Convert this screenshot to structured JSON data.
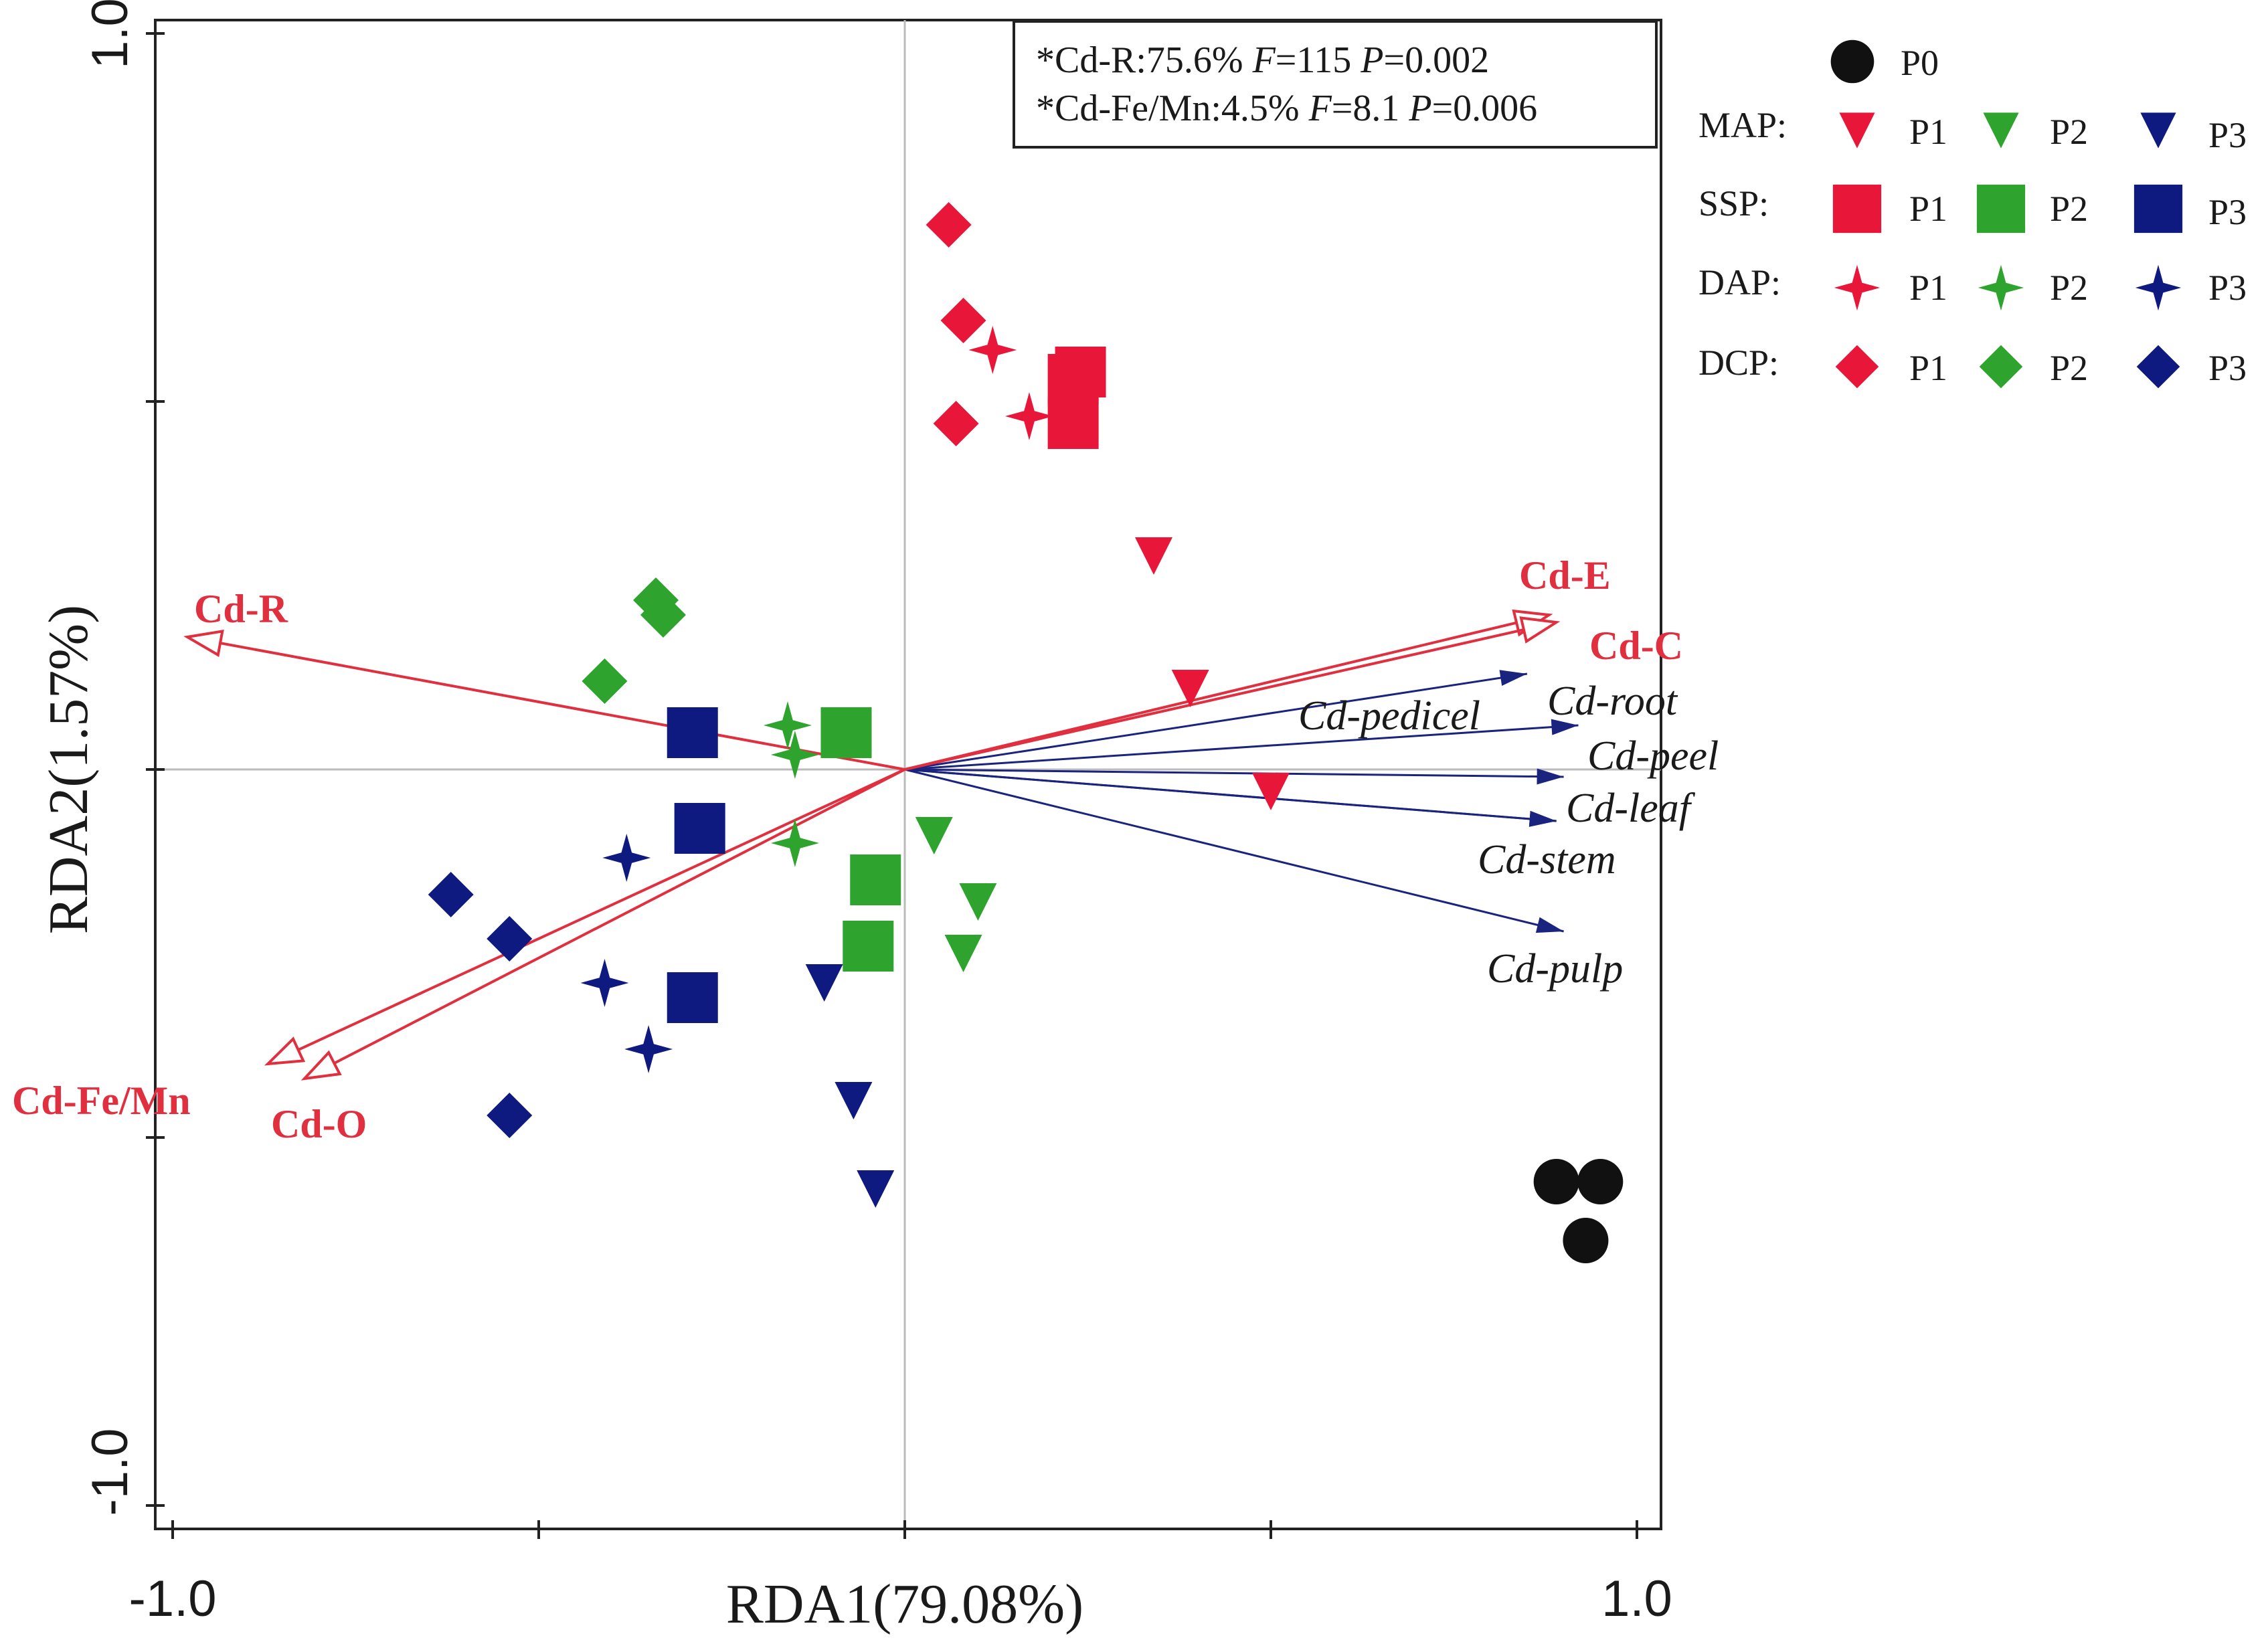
{
  "chart_data": {
    "type": "scatter",
    "title": "",
    "xlabel": "RDA1(79.08%)",
    "ylabel": "RDA2(1.57%)",
    "xlim": [
      -1.0,
      1.0
    ],
    "ylim": [
      -1.0,
      1.0
    ],
    "x_tick_labels": [
      "-1.0",
      "1.0"
    ],
    "y_tick_labels": [
      "1.0",
      "-1.0"
    ],
    "grid": false,
    "reference_lines": "x=0 and y=0",
    "stats_box": {
      "line1": {
        "prefix": "*Cd-R:75.6% ",
        "f_label": "F",
        "f_value": "=115 ",
        "p_label": "P",
        "p_value": "=0.002"
      },
      "line2": {
        "prefix": "*Cd-Fe/Mn:4.5% ",
        "f_label": "F",
        "f_value": "=8.1 ",
        "p_label": "P",
        "p_value": "=0.006"
      }
    },
    "colors": {
      "P1": "#e8173a",
      "P2": "#2ea42e",
      "P3": "#0f1a80",
      "P0": "#111111",
      "red_vector": "#e03040",
      "blue_vector": "#1a237e"
    },
    "environment_vectors": [
      {
        "label": "Cd-R",
        "x": -0.98,
        "y": 0.18
      },
      {
        "label": "Cd-Fe/Mn",
        "x": -0.87,
        "y": -0.4
      },
      {
        "label": "Cd-O",
        "x": -0.82,
        "y": -0.42
      },
      {
        "label": "Cd-E",
        "x": 0.88,
        "y": 0.21
      },
      {
        "label": "Cd-C",
        "x": 0.89,
        "y": 0.2
      }
    ],
    "response_vectors": [
      {
        "label": "Cd-pedicel",
        "x": 0.85,
        "y": 0.13
      },
      {
        "label": "Cd-root",
        "x": 0.92,
        "y": 0.06
      },
      {
        "label": "Cd-peel",
        "x": 0.9,
        "y": -0.01
      },
      {
        "label": "Cd-leaf",
        "x": 0.89,
        "y": -0.07
      },
      {
        "label": "Cd-stem",
        "x": 0.89,
        "y": -0.07
      },
      {
        "label": "Cd-pulp",
        "x": 0.9,
        "y": -0.22
      }
    ],
    "series": [
      {
        "name": "P0",
        "fertilizer": "",
        "marker": "circle",
        "level": "P0",
        "points": [
          [
            0.89,
            -0.56
          ],
          [
            0.95,
            -0.56
          ],
          [
            0.93,
            -0.64
          ]
        ]
      },
      {
        "name": "MAP P1",
        "fertilizer": "MAP",
        "marker": "triangle-down",
        "level": "P1",
        "points": [
          [
            0.34,
            0.29
          ],
          [
            0.39,
            0.11
          ],
          [
            0.5,
            -0.03
          ]
        ]
      },
      {
        "name": "MAP P2",
        "fertilizer": "MAP",
        "marker": "triangle-down",
        "level": "P2",
        "points": [
          [
            0.04,
            -0.09
          ],
          [
            0.1,
            -0.18
          ],
          [
            0.08,
            -0.25
          ]
        ]
      },
      {
        "name": "MAP P3",
        "fertilizer": "MAP",
        "marker": "triangle-down",
        "level": "P3",
        "points": [
          [
            -0.11,
            -0.29
          ],
          [
            -0.07,
            -0.45
          ],
          [
            -0.04,
            -0.57
          ]
        ]
      },
      {
        "name": "SSP P1",
        "fertilizer": "SSP",
        "marker": "square",
        "level": "P1",
        "points": [
          [
            0.23,
            0.53
          ],
          [
            0.24,
            0.54
          ],
          [
            0.23,
            0.47
          ]
        ]
      },
      {
        "name": "SSP P2",
        "fertilizer": "SSP",
        "marker": "square",
        "level": "P2",
        "points": [
          [
            -0.08,
            0.05
          ],
          [
            -0.04,
            -0.15
          ],
          [
            -0.05,
            -0.24
          ]
        ]
      },
      {
        "name": "SSP P3",
        "fertilizer": "SSP",
        "marker": "square",
        "level": "P3",
        "points": [
          [
            -0.29,
            0.05
          ],
          [
            -0.28,
            -0.08
          ],
          [
            -0.29,
            -0.31
          ]
        ]
      },
      {
        "name": "DAP P1",
        "fertilizer": "DAP",
        "marker": "star",
        "level": "P1",
        "points": [
          [
            0.12,
            0.57
          ],
          [
            0.17,
            0.48
          ]
        ]
      },
      {
        "name": "DAP P2",
        "fertilizer": "DAP",
        "marker": "star",
        "level": "P2",
        "points": [
          [
            -0.16,
            0.06
          ],
          [
            -0.15,
            0.02
          ],
          [
            -0.15,
            -0.1
          ]
        ]
      },
      {
        "name": "DAP P3",
        "fertilizer": "DAP",
        "marker": "star",
        "level": "P3",
        "points": [
          [
            -0.38,
            -0.12
          ],
          [
            -0.41,
            -0.29
          ],
          [
            -0.35,
            -0.38
          ]
        ]
      },
      {
        "name": "DCP P1",
        "fertilizer": "DCP",
        "marker": "diamond",
        "level": "P1",
        "points": [
          [
            0.06,
            0.74
          ],
          [
            0.08,
            0.61
          ],
          [
            0.07,
            0.47
          ]
        ]
      },
      {
        "name": "DCP P2",
        "fertilizer": "DCP",
        "marker": "diamond",
        "level": "P2",
        "points": [
          [
            -0.34,
            0.23
          ],
          [
            -0.33,
            0.21
          ],
          [
            -0.41,
            0.12
          ]
        ]
      },
      {
        "name": "DCP P3",
        "fertilizer": "DCP",
        "marker": "diamond",
        "level": "P3",
        "points": [
          [
            -0.62,
            -0.17
          ],
          [
            -0.54,
            -0.23
          ],
          [
            -0.54,
            -0.47
          ]
        ]
      }
    ]
  },
  "legend": {
    "p0": {
      "label": "P0"
    },
    "rows": [
      {
        "label": "MAP:",
        "marker": "triangle-down",
        "items": [
          "P1",
          "P2",
          "P3"
        ]
      },
      {
        "label": "SSP:",
        "marker": "square",
        "items": [
          "P1",
          "P2",
          "P3"
        ]
      },
      {
        "label": "DAP:",
        "marker": "star",
        "items": [
          "P1",
          "P2",
          "P3"
        ]
      },
      {
        "label": "DCP:",
        "marker": "diamond",
        "items": [
          "P1",
          "P2",
          "P3"
        ]
      }
    ]
  }
}
